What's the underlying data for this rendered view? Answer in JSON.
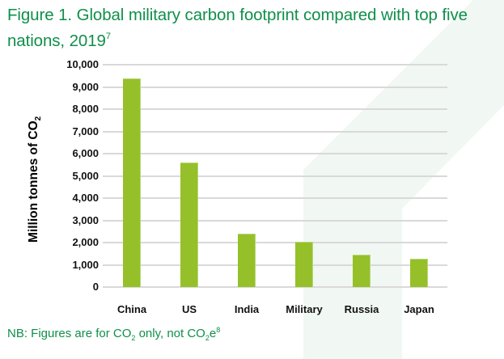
{
  "figure": {
    "title_main": "Figure 1. Global military carbon footprint compared with top five nations, 2019",
    "title_footnote": "7",
    "note_prefix": "NB: Figures are for CO",
    "note_sub1": "2",
    "note_mid": " only, not CO",
    "note_sub2": "2",
    "note_suffix": "e",
    "note_footnote": "8"
  },
  "axis": {
    "ylabel_main": "Million tonnes of CO",
    "ylabel_sub": "2"
  },
  "colors": {
    "bar": "#96c029",
    "title": "#0f8f4a",
    "background_shape": "#f1f7f3",
    "gridline": "#d9d9d9"
  },
  "chart_data": {
    "type": "bar",
    "title": "Figure 1. Global military carbon footprint compared with top five nations, 2019",
    "categories": [
      "China",
      "US",
      "India",
      "Military",
      "Russia",
      "Japan"
    ],
    "values": [
      9400,
      5600,
      2400,
      2050,
      1450,
      1270
    ],
    "xlabel": "",
    "ylabel": "Million tonnes of CO2",
    "ylim": [
      0,
      10000
    ],
    "yticks": [
      0,
      1000,
      2000,
      3000,
      4000,
      5000,
      6000,
      7000,
      8000,
      9000,
      10000
    ],
    "ytick_labels": [
      "0",
      "1,000",
      "2,000",
      "3,000",
      "4,000",
      "5,000",
      "6,000",
      "7,000",
      "8,000",
      "9,000",
      "10,000"
    ],
    "grid": true,
    "legend": null,
    "annotations": [
      "NB: Figures are for CO2 only, not CO2e"
    ]
  }
}
